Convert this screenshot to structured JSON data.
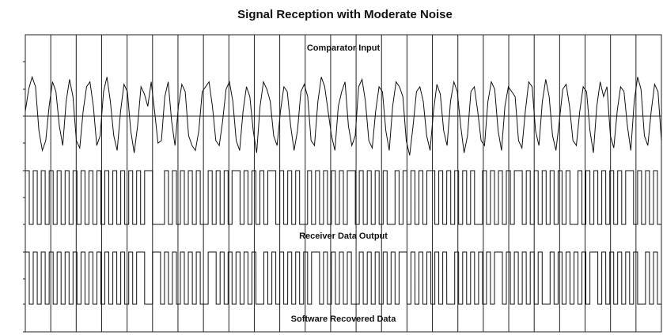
{
  "chart_data": {
    "type": "line",
    "title": "Signal Reception with Moderate Noise",
    "xlabel": "",
    "ylabel": "",
    "grid": true,
    "bit_cells": 25,
    "traces": [
      {
        "label": "Comparator Input",
        "kind": "analog",
        "values": [
          0.1,
          0.55,
          0.8,
          0.6,
          -0.3,
          -0.7,
          -0.5,
          0.2,
          0.7,
          0.5,
          -0.2,
          -0.6,
          0.3,
          0.75,
          0.4,
          -0.5,
          -0.65,
          0.1,
          0.6,
          0.7,
          0.2,
          -0.6,
          -0.4,
          0.5,
          0.8,
          0.3,
          -0.4,
          -0.7,
          0.1,
          0.65,
          0.5,
          -0.3,
          -0.75,
          -0.2,
          0.6,
          0.45,
          0.2,
          0.7,
          0.1,
          -0.55,
          -0.5,
          0.4,
          0.7,
          -0.1,
          -0.6,
          0.2,
          0.65,
          0.5,
          -0.4,
          -0.6,
          -0.7,
          -0.3,
          0.5,
          0.6,
          0.7,
          0.2,
          -0.5,
          -0.6,
          -0.1,
          0.55,
          0.7,
          0.3,
          -0.5,
          -0.7,
          0.1,
          0.6,
          0.4,
          -0.3,
          -0.75,
          0.2,
          0.7,
          0.55,
          0.3,
          -0.4,
          -0.6,
          0.1,
          0.6,
          0.5,
          -0.2,
          -0.7,
          -0.3,
          0.5,
          0.65,
          0.4,
          -0.5,
          -0.6,
          0.3,
          0.8,
          0.6,
          0.1,
          -0.4,
          -0.7,
          0.2,
          0.5,
          0.7,
          -0.2,
          -0.6,
          -0.4,
          0.6,
          0.75,
          0.3,
          -0.5,
          -0.65,
          0.1,
          0.6,
          0.5,
          -0.3,
          -0.7,
          0.2,
          0.7,
          0.6,
          0.4,
          -0.5,
          -0.8,
          -0.2,
          0.5,
          0.6,
          0.3,
          -0.4,
          -0.7,
          0.1,
          0.65,
          0.45,
          -0.3,
          -0.6,
          0.3,
          0.7,
          0.5,
          -0.2,
          -0.75,
          -0.4,
          0.5,
          0.6,
          0.1,
          -0.5,
          -0.6,
          0.3,
          0.7,
          0.55,
          -0.3,
          -0.7,
          0.2,
          0.6,
          0.5,
          0.4,
          -0.5,
          -0.65,
          0.1,
          0.7,
          0.6,
          -0.3,
          -0.6,
          0.3,
          0.75,
          0.4,
          -0.4,
          -0.7,
          -0.1,
          0.55,
          0.65,
          0.2,
          -0.5,
          -0.6,
          0.1,
          0.6,
          0.5,
          -0.3,
          -0.75,
          0.2,
          0.7,
          0.4,
          0.6,
          -0.4,
          -0.65,
          0.1,
          0.6,
          0.5,
          -0.2,
          -0.7,
          0.3,
          0.8,
          0.55,
          -0.4,
          -0.6,
          0.1,
          0.65,
          0.5,
          -0.5
        ]
      },
      {
        "label": "Receiver Data Output",
        "kind": "digital",
        "levels": [
          1,
          0,
          1,
          0,
          1,
          0,
          1,
          0,
          1,
          0,
          1,
          0,
          1,
          0,
          1,
          0,
          1,
          0,
          1,
          0,
          1,
          0,
          1,
          0,
          1,
          0,
          1,
          0,
          1,
          0,
          1,
          1,
          0,
          0,
          0,
          1,
          0,
          1,
          0,
          1,
          0,
          1,
          0,
          1,
          0,
          0,
          1,
          0,
          1,
          0,
          1,
          0,
          1,
          1,
          0,
          1,
          0,
          1,
          0,
          1,
          0,
          1,
          1,
          0,
          1,
          0,
          1,
          0,
          1,
          0,
          0,
          1,
          0,
          1,
          0,
          1,
          0,
          1,
          0,
          1,
          0,
          1,
          1,
          0,
          1,
          0,
          1,
          0,
          1,
          0,
          1,
          0,
          0,
          1,
          0,
          1,
          0,
          1,
          0,
          1,
          0,
          1,
          1,
          0,
          1,
          0,
          1,
          0,
          1,
          0,
          1,
          0,
          1,
          0,
          0,
          1,
          0,
          1,
          0,
          1,
          0,
          1,
          0,
          1,
          1,
          0,
          1,
          0,
          1,
          0,
          1,
          0,
          1,
          0,
          1,
          0,
          1,
          0,
          0,
          1,
          0,
          1,
          0,
          1,
          0,
          1,
          0,
          1,
          0,
          1,
          0,
          1,
          1,
          0,
          1,
          0,
          1,
          0,
          1,
          0
        ]
      },
      {
        "label": "Software Recovered Data",
        "kind": "digital",
        "levels": [
          1,
          0,
          1,
          0,
          1,
          0,
          1,
          0,
          1,
          0,
          1,
          0,
          1,
          0,
          1,
          0,
          1,
          0,
          1,
          0,
          1,
          0,
          1,
          0,
          1,
          0,
          1,
          0,
          1,
          1,
          0,
          0,
          1,
          1,
          0,
          1,
          0,
          1,
          0,
          1,
          0,
          1,
          0,
          1,
          0,
          0,
          1,
          1,
          0,
          1,
          0,
          1,
          0,
          1,
          0,
          1,
          0,
          1,
          0,
          0,
          1,
          0,
          1,
          0,
          1,
          0,
          1,
          0,
          1,
          0,
          1,
          0,
          1,
          1,
          0,
          1,
          0,
          1,
          0,
          1,
          0,
          1,
          0,
          0,
          1,
          0,
          1,
          0,
          1,
          0,
          1,
          0,
          1,
          0,
          1,
          1,
          0,
          1,
          0,
          1,
          0,
          1,
          0,
          1,
          0,
          1,
          0,
          0,
          1,
          0,
          1,
          0,
          1,
          0,
          1,
          0,
          1,
          0,
          1,
          1,
          0,
          1,
          0,
          1,
          0,
          1,
          0,
          1,
          0,
          1,
          0,
          0,
          1,
          0,
          1,
          0,
          1,
          0,
          1,
          0,
          1,
          0,
          1,
          1,
          0,
          1,
          0,
          1,
          0,
          1,
          0,
          1,
          0,
          1,
          0,
          0,
          1,
          0,
          1,
          0
        ]
      }
    ]
  }
}
